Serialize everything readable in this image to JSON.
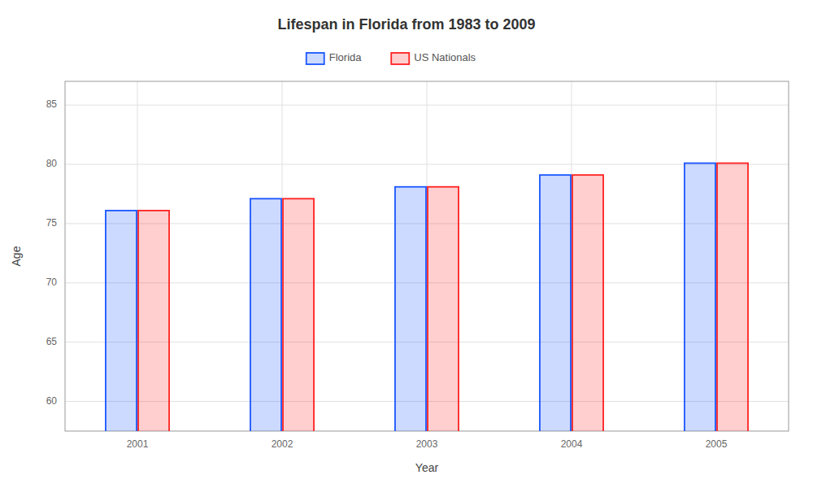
{
  "chart_data": {
    "type": "bar",
    "title": "Lifespan in Florida from 1983 to 2009",
    "xlabel": "Year",
    "ylabel": "Age",
    "categories": [
      "2001",
      "2002",
      "2003",
      "2004",
      "2005"
    ],
    "series": [
      {
        "name": "Florida",
        "color": "#1a56ff",
        "values": [
          76.1,
          77.1,
          78.1,
          79.1,
          80.1
        ]
      },
      {
        "name": "US Nationals",
        "color": "#ff2222",
        "values": [
          76.1,
          77.1,
          78.1,
          79.1,
          80.1
        ]
      }
    ],
    "ylim": [
      57.5,
      87
    ],
    "yticks": [
      60,
      65,
      70,
      75,
      80,
      85
    ],
    "grid": true,
    "legend": "top"
  }
}
